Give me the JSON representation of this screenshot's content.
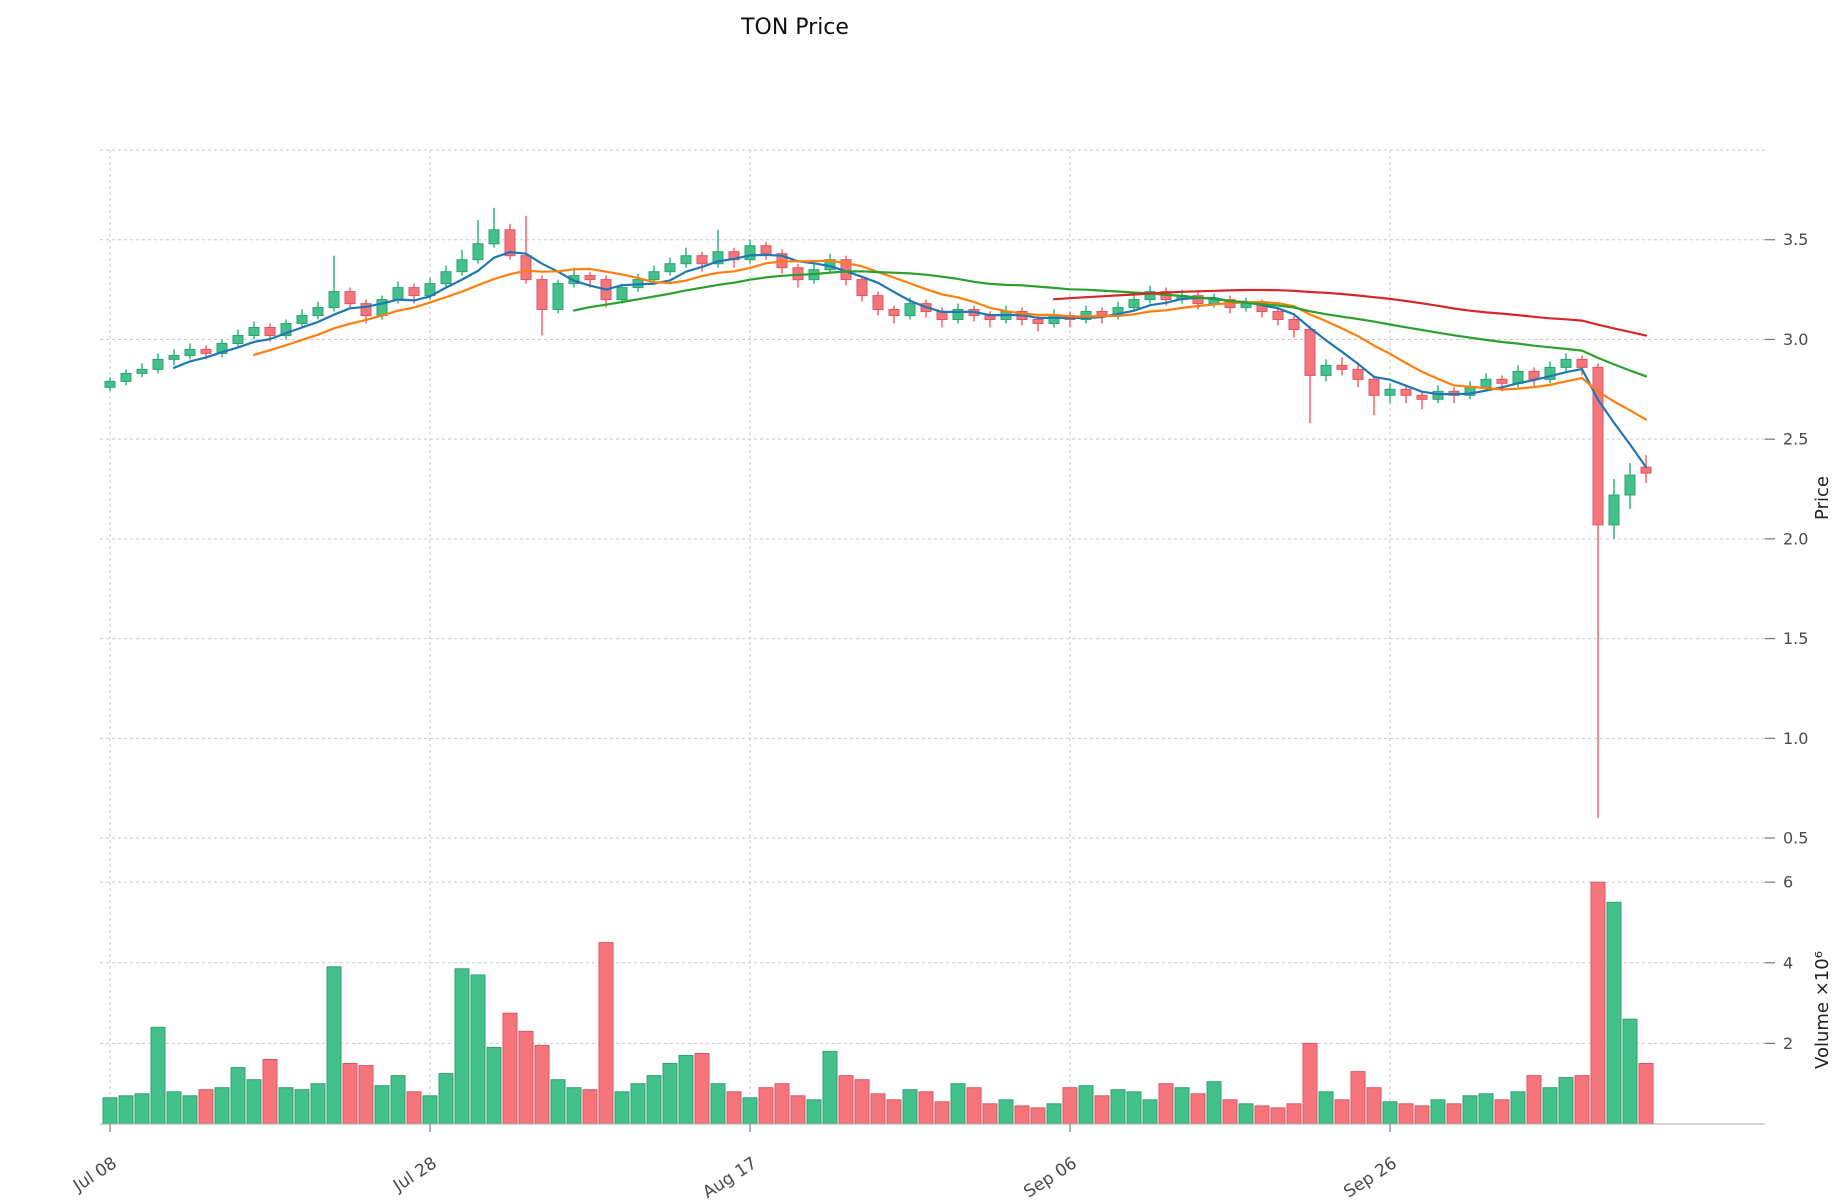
{
  "title": "TON Price",
  "axes": {
    "price_label": "Price",
    "volume_label": "Volume ×10⁶"
  },
  "chart_data": {
    "type": "candlestick",
    "title": "TON Price",
    "panels": [
      "price",
      "volume"
    ],
    "grid": true,
    "legend": "none",
    "x_ticks": [
      {
        "index": 0,
        "label": "Jul 08"
      },
      {
        "index": 20,
        "label": "Jul 28"
      },
      {
        "index": 40,
        "label": "Aug 17"
      },
      {
        "index": 60,
        "label": "Sep 06"
      },
      {
        "index": 80,
        "label": "Sep 26"
      }
    ],
    "price_axis": {
      "label": "Price",
      "ticks": [
        0.5,
        1.0,
        1.5,
        2.0,
        2.5,
        3.0,
        3.5
      ],
      "range": [
        0.45,
        3.95
      ]
    },
    "volume_axis": {
      "label": "Volume ×10⁶",
      "ticks": [
        2,
        4,
        6
      ],
      "range": [
        0,
        6.5
      ],
      "unit": 1000000
    },
    "colors": {
      "up": "#44C08A",
      "up_edge": "#2FA170",
      "down": "#F4767C",
      "down_edge": "#DE5560",
      "grid": "#c9c9c9",
      "tick_text": "#4a4a4a",
      "baseline": "#aaaaaa"
    },
    "moving_averages": [
      {
        "name": "MA5",
        "window": 5,
        "color": "#1f77b4"
      },
      {
        "name": "MA10",
        "window": 10,
        "color": "#ff7f0e"
      },
      {
        "name": "MA30",
        "window": 30,
        "color": "#2ca02c"
      },
      {
        "name": "MA60",
        "window": 60,
        "color": "#d62728"
      }
    ],
    "candles_format": [
      "open",
      "high",
      "low",
      "close",
      "volume_millions"
    ],
    "candles": [
      [
        2.76,
        2.81,
        2.74,
        2.79,
        0.65
      ],
      [
        2.79,
        2.85,
        2.77,
        2.83,
        0.7
      ],
      [
        2.83,
        2.88,
        2.81,
        2.85,
        0.75
      ],
      [
        2.85,
        2.93,
        2.83,
        2.9,
        2.4
      ],
      [
        2.9,
        2.95,
        2.87,
        2.92,
        0.8
      ],
      [
        2.92,
        2.98,
        2.9,
        2.95,
        0.7
      ],
      [
        2.95,
        2.97,
        2.9,
        2.93,
        0.85
      ],
      [
        2.93,
        3.0,
        2.91,
        2.98,
        0.9
      ],
      [
        2.98,
        3.05,
        2.96,
        3.02,
        1.4
      ],
      [
        3.02,
        3.09,
        3.0,
        3.06,
        1.1
      ],
      [
        3.06,
        3.08,
        2.99,
        3.02,
        1.6
      ],
      [
        3.02,
        3.1,
        3.0,
        3.08,
        0.9
      ],
      [
        3.08,
        3.15,
        3.06,
        3.12,
        0.85
      ],
      [
        3.12,
        3.19,
        3.1,
        3.16,
        1.0
      ],
      [
        3.16,
        3.42,
        3.14,
        3.24,
        3.9
      ],
      [
        3.24,
        3.26,
        3.15,
        3.18,
        1.5
      ],
      [
        3.18,
        3.2,
        3.08,
        3.12,
        1.45
      ],
      [
        3.12,
        3.22,
        3.1,
        3.2,
        0.95
      ],
      [
        3.2,
        3.29,
        3.18,
        3.26,
        1.2
      ],
      [
        3.26,
        3.28,
        3.18,
        3.22,
        0.8
      ],
      [
        3.22,
        3.31,
        3.2,
        3.28,
        0.7
      ],
      [
        3.28,
        3.37,
        3.26,
        3.34,
        1.25
      ],
      [
        3.34,
        3.45,
        3.32,
        3.4,
        3.85
      ],
      [
        3.4,
        3.6,
        3.38,
        3.48,
        3.7
      ],
      [
        3.48,
        3.66,
        3.46,
        3.55,
        1.9
      ],
      [
        3.55,
        3.58,
        3.4,
        3.42,
        2.75
      ],
      [
        3.42,
        3.62,
        3.28,
        3.3,
        2.3
      ],
      [
        3.3,
        3.32,
        3.02,
        3.15,
        1.95
      ],
      [
        3.15,
        3.3,
        3.13,
        3.28,
        1.1
      ],
      [
        3.28,
        3.36,
        3.26,
        3.32,
        0.9
      ],
      [
        3.32,
        3.34,
        3.26,
        3.3,
        0.85
      ],
      [
        3.3,
        3.32,
        3.16,
        3.2,
        4.5
      ],
      [
        3.2,
        3.28,
        3.18,
        3.26,
        0.8
      ],
      [
        3.26,
        3.33,
        3.24,
        3.3,
        1.0
      ],
      [
        3.3,
        3.37,
        3.28,
        3.34,
        1.2
      ],
      [
        3.34,
        3.41,
        3.32,
        3.38,
        1.5
      ],
      [
        3.38,
        3.46,
        3.36,
        3.42,
        1.7
      ],
      [
        3.42,
        3.44,
        3.34,
        3.38,
        1.75
      ],
      [
        3.38,
        3.55,
        3.36,
        3.44,
        1.0
      ],
      [
        3.44,
        3.46,
        3.36,
        3.4,
        0.8
      ],
      [
        3.4,
        3.5,
        3.38,
        3.47,
        0.65
      ],
      [
        3.47,
        3.49,
        3.4,
        3.43,
        0.9
      ],
      [
        3.43,
        3.45,
        3.33,
        3.36,
        1.0
      ],
      [
        3.36,
        3.38,
        3.26,
        3.3,
        0.7
      ],
      [
        3.3,
        3.38,
        3.28,
        3.35,
        0.6
      ],
      [
        3.35,
        3.43,
        3.33,
        3.4,
        1.8
      ],
      [
        3.4,
        3.42,
        3.27,
        3.3,
        1.2
      ],
      [
        3.3,
        3.32,
        3.19,
        3.22,
        1.1
      ],
      [
        3.22,
        3.24,
        3.12,
        3.15,
        0.75
      ],
      [
        3.15,
        3.17,
        3.08,
        3.12,
        0.6
      ],
      [
        3.12,
        3.21,
        3.1,
        3.18,
        0.85
      ],
      [
        3.18,
        3.2,
        3.11,
        3.14,
        0.8
      ],
      [
        3.14,
        3.16,
        3.06,
        3.1,
        0.55
      ],
      [
        3.1,
        3.18,
        3.08,
        3.15,
        1.0
      ],
      [
        3.15,
        3.17,
        3.09,
        3.12,
        0.9
      ],
      [
        3.12,
        3.14,
        3.06,
        3.1,
        0.5
      ],
      [
        3.1,
        3.17,
        3.08,
        3.14,
        0.6
      ],
      [
        3.14,
        3.16,
        3.07,
        3.1,
        0.45
      ],
      [
        3.1,
        3.12,
        3.04,
        3.08,
        0.4
      ],
      [
        3.08,
        3.15,
        3.06,
        3.12,
        0.5
      ],
      [
        3.12,
        3.14,
        3.06,
        3.1,
        0.9
      ],
      [
        3.1,
        3.17,
        3.08,
        3.14,
        0.95
      ],
      [
        3.14,
        3.16,
        3.08,
        3.12,
        0.7
      ],
      [
        3.12,
        3.19,
        3.1,
        3.16,
        0.85
      ],
      [
        3.16,
        3.23,
        3.14,
        3.2,
        0.8
      ],
      [
        3.2,
        3.27,
        3.18,
        3.24,
        0.6
      ],
      [
        3.24,
        3.26,
        3.17,
        3.2,
        1.0
      ],
      [
        3.2,
        3.25,
        3.18,
        3.22,
        0.9
      ],
      [
        3.22,
        3.24,
        3.15,
        3.18,
        0.75
      ],
      [
        3.18,
        3.23,
        3.16,
        3.2,
        1.05
      ],
      [
        3.2,
        3.22,
        3.13,
        3.16,
        0.6
      ],
      [
        3.16,
        3.21,
        3.14,
        3.18,
        0.5
      ],
      [
        3.18,
        3.2,
        3.11,
        3.14,
        0.45
      ],
      [
        3.14,
        3.16,
        3.07,
        3.1,
        0.4
      ],
      [
        3.1,
        3.12,
        3.01,
        3.05,
        0.5
      ],
      [
        3.05,
        3.07,
        2.58,
        2.82,
        2.0
      ],
      [
        2.82,
        2.9,
        2.79,
        2.87,
        0.8
      ],
      [
        2.87,
        2.91,
        2.82,
        2.85,
        0.6
      ],
      [
        2.85,
        2.88,
        2.76,
        2.8,
        1.3
      ],
      [
        2.8,
        2.82,
        2.62,
        2.72,
        0.9
      ],
      [
        2.72,
        2.78,
        2.68,
        2.75,
        0.55
      ],
      [
        2.75,
        2.77,
        2.68,
        2.72,
        0.5
      ],
      [
        2.72,
        2.74,
        2.65,
        2.7,
        0.45
      ],
      [
        2.7,
        2.77,
        2.68,
        2.74,
        0.6
      ],
      [
        2.74,
        2.76,
        2.68,
        2.72,
        0.5
      ],
      [
        2.72,
        2.79,
        2.7,
        2.76,
        0.7
      ],
      [
        2.76,
        2.83,
        2.74,
        2.8,
        0.75
      ],
      [
        2.8,
        2.82,
        2.74,
        2.78,
        0.6
      ],
      [
        2.78,
        2.87,
        2.76,
        2.84,
        0.8
      ],
      [
        2.84,
        2.86,
        2.76,
        2.8,
        1.2
      ],
      [
        2.8,
        2.89,
        2.78,
        2.86,
        0.9
      ],
      [
        2.86,
        2.93,
        2.84,
        2.9,
        1.15
      ],
      [
        2.9,
        2.92,
        2.82,
        2.86,
        1.2
      ],
      [
        2.86,
        2.88,
        0.6,
        2.07,
        6.0
      ],
      [
        2.07,
        2.3,
        2.0,
        2.22,
        5.5
      ],
      [
        2.22,
        2.38,
        2.15,
        2.32,
        2.6
      ],
      [
        2.36,
        2.42,
        2.28,
        2.33,
        1.5
      ]
    ]
  }
}
